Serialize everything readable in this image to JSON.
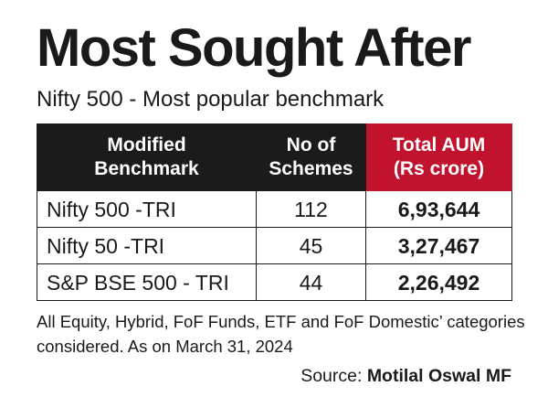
{
  "colors": {
    "header_dark": "#1b1b1b",
    "header_accent": "#c1122e",
    "text": "#1a1a1a",
    "background": "#ffffff"
  },
  "title": "Most Sought After",
  "subtitle": "Nifty 500 - Most popular benchmark",
  "chart_data": {
    "type": "table",
    "title": "Most Sought After",
    "subtitle": "Nifty 500 - Most popular benchmark",
    "columns": [
      {
        "line1": "Modified",
        "line2": "Benchmark"
      },
      {
        "line1": "No of",
        "line2": "Schemes"
      },
      {
        "line1": "Total AUM",
        "line2": "(Rs crore)"
      }
    ],
    "rows": [
      {
        "benchmark": "Nifty 500 -TRI",
        "schemes": "112",
        "aum": "6,93,644"
      },
      {
        "benchmark": "Nifty 50 -TRI",
        "schemes": "45",
        "aum": "3,27,467"
      },
      {
        "benchmark": "S&P BSE 500 - TRI",
        "schemes": "44",
        "aum": "2,26,492"
      }
    ]
  },
  "footnote": "All Equity, Hybrid, FoF Funds, ETF and FoF Domestic’ categories considered. As on March 31, 2024",
  "source": {
    "label": "Source:",
    "name": "Motilal Oswal MF"
  }
}
